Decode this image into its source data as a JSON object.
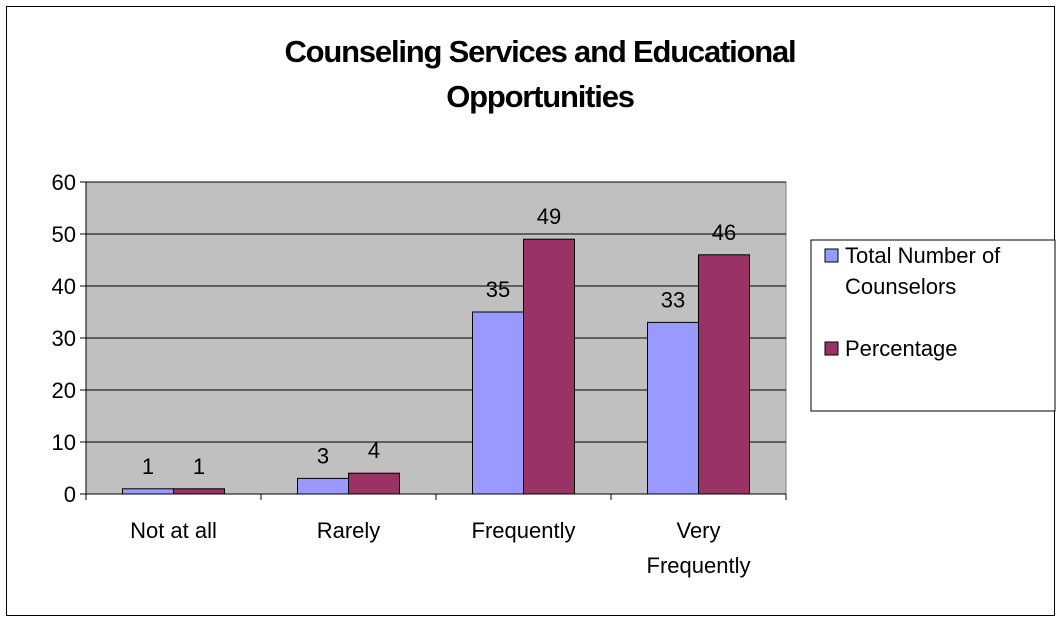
{
  "chart_data": {
    "type": "bar",
    "title_lines": [
      "Counseling Services and Educational",
      "Opportunities"
    ],
    "categories": [
      [
        "Not at all"
      ],
      [
        "Rarely"
      ],
      [
        "Frequently"
      ],
      [
        "Very",
        "Frequently"
      ]
    ],
    "series": [
      {
        "name_lines": [
          "Total Number of",
          "Counselors"
        ],
        "values": [
          1,
          3,
          35,
          33
        ],
        "data_labels": [
          "1",
          "3",
          "35",
          "33"
        ]
      },
      {
        "name_lines": [
          "Percentage"
        ],
        "values": [
          1,
          4,
          49,
          46
        ],
        "data_labels": [
          "1",
          "4",
          "49",
          "46"
        ]
      }
    ],
    "yticks": [
      "0",
      "10",
      "20",
      "30",
      "40",
      "50",
      "60"
    ],
    "ylim": [
      0,
      60
    ],
    "grid": true,
    "legend_position": "right"
  },
  "colors": {
    "series_fills": [
      "#9999ff",
      "#993366"
    ],
    "plot_background": "#c0c0c0",
    "gridline": "#000000"
  }
}
